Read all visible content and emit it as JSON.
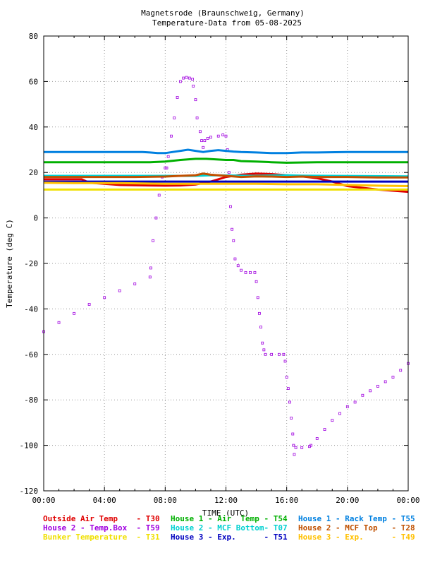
{
  "chart_data": {
    "type": "line",
    "title": "Magnetsrode (Braunschweig, Germany)",
    "subtitle": "Temperature-Data from 05-08-2025",
    "xlabel": "TIME (UTC)",
    "ylabel": "Temperature (deg C)",
    "xlim": [
      0,
      24
    ],
    "ylim": [
      -120,
      80
    ],
    "grid": true,
    "legend_position": "bottom",
    "x_ticks": [
      "00:00",
      "04:00",
      "08:00",
      "12:00",
      "16:00",
      "20:00",
      "00:00"
    ],
    "y_ticks": [
      "80",
      "60",
      "40",
      "20",
      "0",
      "-20",
      "-40",
      "-60",
      "-80",
      "-100",
      "-120"
    ],
    "series": [
      {
        "name": "Outside Air Temp    - T30",
        "color": "#e00000",
        "style": "line",
        "points": [
          [
            0,
            17
          ],
          [
            2.5,
            17
          ],
          [
            3,
            15.5
          ],
          [
            5,
            14.5
          ],
          [
            7,
            14.3
          ],
          [
            8,
            14.2
          ],
          [
            9,
            14.3
          ],
          [
            10,
            14.7
          ],
          [
            11,
            16
          ],
          [
            12,
            18
          ],
          [
            13,
            19
          ],
          [
            14,
            19.5
          ],
          [
            15,
            19.3
          ],
          [
            16,
            18.8
          ],
          [
            17,
            18.3
          ],
          [
            18,
            17.5
          ],
          [
            19,
            16
          ],
          [
            20,
            14
          ],
          [
            22,
            12.5
          ],
          [
            24,
            11.5
          ]
        ]
      },
      {
        "name": "House 2 - Temp.Box  - T59",
        "color": "#a000e0",
        "style": "dots",
        "points": [
          [
            0,
            -50
          ],
          [
            1,
            -46
          ],
          [
            2,
            -42
          ],
          [
            3,
            -38
          ],
          [
            4,
            -35
          ],
          [
            5,
            -32
          ],
          [
            6,
            -29
          ],
          [
            7,
            -26
          ],
          [
            7.05,
            -22
          ],
          [
            7.2,
            -10
          ],
          [
            7.4,
            0
          ],
          [
            7.6,
            10
          ],
          [
            7.8,
            18
          ],
          [
            8,
            22
          ],
          [
            8.1,
            22
          ],
          [
            8.2,
            27
          ],
          [
            8.4,
            36
          ],
          [
            8.6,
            44
          ],
          [
            8.8,
            53
          ],
          [
            9,
            60
          ],
          [
            9.2,
            61.5
          ],
          [
            9.4,
            61.8
          ],
          [
            9.6,
            61.5
          ],
          [
            9.8,
            61
          ],
          [
            9.85,
            58
          ],
          [
            10,
            52
          ],
          [
            10.1,
            44
          ],
          [
            10.3,
            38
          ],
          [
            10.4,
            34
          ],
          [
            10.5,
            31
          ],
          [
            10.6,
            34
          ],
          [
            10.8,
            35
          ],
          [
            11,
            35.5
          ],
          [
            11.5,
            36
          ],
          [
            11.8,
            36.5
          ],
          [
            12,
            36
          ],
          [
            12.1,
            30
          ],
          [
            12.2,
            20
          ],
          [
            12.3,
            5
          ],
          [
            12.4,
            -5
          ],
          [
            12.5,
            -10
          ],
          [
            12.6,
            -18
          ],
          [
            12.8,
            -21
          ],
          [
            13,
            -23
          ],
          [
            13.3,
            -24
          ],
          [
            13.6,
            -24
          ],
          [
            13.9,
            -24
          ],
          [
            14,
            -28
          ],
          [
            14.1,
            -35
          ],
          [
            14.2,
            -42
          ],
          [
            14.3,
            -48
          ],
          [
            14.4,
            -55
          ],
          [
            14.5,
            -58
          ],
          [
            14.6,
            -60
          ],
          [
            15,
            -60
          ],
          [
            15.5,
            -60
          ],
          [
            15.8,
            -60
          ],
          [
            15.9,
            -63
          ],
          [
            16,
            -70
          ],
          [
            16.1,
            -75
          ],
          [
            16.2,
            -81
          ],
          [
            16.3,
            -88
          ],
          [
            16.4,
            -95
          ],
          [
            16.45,
            -100
          ],
          [
            16.5,
            -104
          ],
          [
            16.6,
            -101
          ],
          [
            17,
            -101
          ],
          [
            17.5,
            -100.5
          ],
          [
            17.6,
            -100
          ],
          [
            18,
            -97
          ],
          [
            18.5,
            -93
          ],
          [
            19,
            -89
          ],
          [
            19.5,
            -86
          ],
          [
            20,
            -83
          ],
          [
            20.5,
            -81
          ],
          [
            21,
            -78
          ],
          [
            21.5,
            -76
          ],
          [
            22,
            -74
          ],
          [
            22.5,
            -72
          ],
          [
            23,
            -70
          ],
          [
            23.5,
            -67
          ],
          [
            24,
            -64
          ]
        ]
      },
      {
        "name": "Bunker Temperature  - T31",
        "color": "#f0e000",
        "style": "line",
        "points": [
          [
            0,
            12.5
          ],
          [
            24,
            12.5
          ]
        ]
      },
      {
        "name": "House 1 - Air  Temp - T54",
        "color": "#00b000",
        "style": "line",
        "points": [
          [
            0,
            24.5
          ],
          [
            7,
            24.5
          ],
          [
            8,
            24.8
          ],
          [
            9,
            25.5
          ],
          [
            10,
            26
          ],
          [
            10.7,
            26
          ],
          [
            11.2,
            25.8
          ],
          [
            12,
            25.5
          ],
          [
            12.5,
            25.5
          ],
          [
            13,
            25
          ],
          [
            14,
            24.8
          ],
          [
            15,
            24.5
          ],
          [
            16,
            24.3
          ],
          [
            18,
            24.5
          ],
          [
            20,
            24.5
          ],
          [
            24,
            24.5
          ]
        ]
      },
      {
        "name": "House 2 - MCF Bottom- T07",
        "color": "#00d0d0",
        "style": "line",
        "points": [
          [
            0,
            18.5
          ],
          [
            9,
            18.5
          ],
          [
            10,
            18.5
          ],
          [
            11,
            18.8
          ],
          [
            12,
            18.7
          ],
          [
            13,
            18.6
          ],
          [
            14,
            18.5
          ],
          [
            15,
            18.7
          ],
          [
            16,
            18.8
          ],
          [
            17,
            18.6
          ],
          [
            24,
            18.3
          ]
        ]
      },
      {
        "name": "House 3 - Exp.      - T51",
        "color": "#0000c0",
        "style": "line",
        "points": [
          [
            0,
            16
          ],
          [
            24,
            16
          ]
        ]
      },
      {
        "name": "House 1 - Rack Temp - T55",
        "color": "#0080e0",
        "style": "line",
        "points": [
          [
            0,
            29
          ],
          [
            6.5,
            29
          ],
          [
            7,
            28.8
          ],
          [
            7.5,
            28.5
          ],
          [
            8,
            28.5
          ],
          [
            8.5,
            29
          ],
          [
            9,
            29.5
          ],
          [
            9.5,
            30
          ],
          [
            10,
            29.5
          ],
          [
            10.5,
            29
          ],
          [
            11,
            29.5
          ],
          [
            11.5,
            29.8
          ],
          [
            12,
            29.5
          ],
          [
            12.5,
            29.2
          ],
          [
            13,
            29
          ],
          [
            14,
            28.8
          ],
          [
            15,
            28.5
          ],
          [
            16,
            28.5
          ],
          [
            17,
            28.8
          ],
          [
            18,
            28.8
          ],
          [
            20,
            29
          ],
          [
            24,
            29
          ]
        ]
      },
      {
        "name": "House 2 - MCF Top   - T28",
        "color": "#c05000",
        "style": "line",
        "points": [
          [
            0,
            18
          ],
          [
            2,
            18
          ],
          [
            4,
            18
          ],
          [
            6,
            18
          ],
          [
            8,
            18.2
          ],
          [
            9,
            18.5
          ],
          [
            10,
            18.8
          ],
          [
            10.5,
            19.5
          ],
          [
            11,
            19
          ],
          [
            12,
            18.5
          ],
          [
            13,
            18
          ],
          [
            14,
            18.3
          ],
          [
            15,
            18.2
          ],
          [
            16,
            18
          ],
          [
            17,
            18.2
          ],
          [
            18,
            18
          ],
          [
            20,
            18
          ],
          [
            22,
            17.8
          ],
          [
            24,
            17.8
          ]
        ]
      },
      {
        "name": "House 3 - Exp.      - T49",
        "color": "#ffc000",
        "style": "line",
        "points": [
          [
            0,
            15.5
          ],
          [
            2,
            15.3
          ],
          [
            5,
            15.3
          ],
          [
            8,
            15
          ],
          [
            10,
            15
          ],
          [
            12,
            15
          ],
          [
            14,
            15
          ],
          [
            16,
            14.8
          ],
          [
            18,
            14.8
          ],
          [
            20,
            14.5
          ],
          [
            22,
            14.2
          ],
          [
            24,
            14
          ]
        ]
      }
    ]
  }
}
